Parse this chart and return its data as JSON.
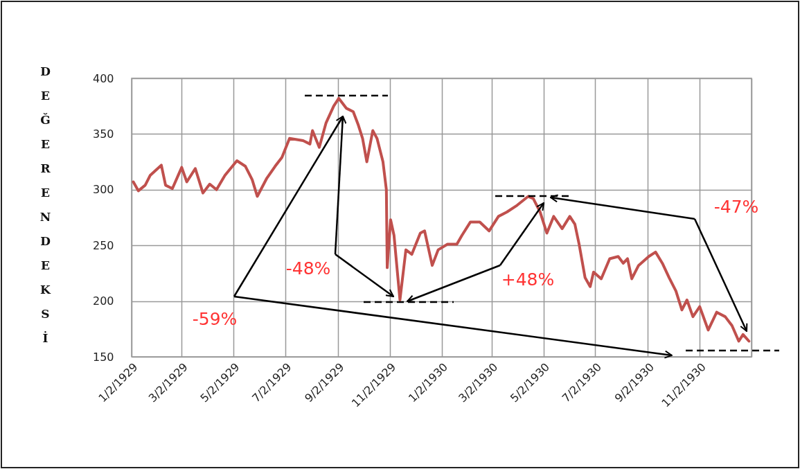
{
  "chart_data": {
    "type": "line",
    "ylabel": "DEĞER ENDEKSİ",
    "x": [
      "1929-01-04",
      "1929-01-10",
      "1929-01-18",
      "1929-01-24",
      "1929-02-06",
      "1929-02-11",
      "1929-02-19",
      "1929-03-02",
      "1929-03-08",
      "1929-03-18",
      "1929-03-27",
      "1929-04-04",
      "1929-04-12",
      "1929-04-22",
      "1929-05-06",
      "1929-05-16",
      "1929-05-24",
      "1929-05-30",
      "1929-06-10",
      "1929-06-20",
      "1929-06-28",
      "1929-07-07",
      "1929-07-23",
      "1929-07-31",
      "1929-08-03",
      "1929-08-11",
      "1929-08-19",
      "1929-08-28",
      "1929-09-03",
      "1929-09-12",
      "1929-09-20",
      "1929-09-26",
      "1929-10-01",
      "1929-10-06",
      "1929-10-13",
      "1929-10-18",
      "1929-10-25",
      "1929-10-29",
      "1929-10-30",
      "1929-11-03",
      "1929-11-07",
      "1929-11-14",
      "1929-11-21",
      "1929-11-28",
      "1929-12-08",
      "1929-12-13",
      "1929-12-22",
      "1929-12-29",
      "1930-01-09",
      "1930-01-20",
      "1930-01-26",
      "1930-02-05",
      "1930-02-16",
      "1930-02-27",
      "1930-03-10",
      "1930-03-20",
      "1930-04-01",
      "1930-04-14",
      "1930-04-20",
      "1930-04-28",
      "1930-05-06",
      "1930-05-14",
      "1930-05-24",
      "1930-06-02",
      "1930-06-08",
      "1930-06-13",
      "1930-06-20",
      "1930-06-26",
      "1930-06-30",
      "1930-07-09",
      "1930-07-19",
      "1930-07-29",
      "1930-08-04",
      "1930-08-09",
      "1930-08-14",
      "1930-08-22",
      "1930-09-03",
      "1930-09-11",
      "1930-09-19",
      "1930-09-27",
      "1930-10-05",
      "1930-10-12",
      "1930-10-18",
      "1930-10-25",
      "1930-11-02",
      "1930-11-12",
      "1930-11-22",
      "1930-12-02",
      "1930-12-10",
      "1930-12-18",
      "1930-12-23",
      "1930-12-30"
    ],
    "series": [
      {
        "color": "#c0504d",
        "values": [
          307,
          299,
          304,
          313,
          322,
          304,
          301,
          320,
          307,
          319,
          297,
          305,
          300,
          313,
          326,
          321,
          309,
          294,
          310,
          321,
          329,
          346,
          344,
          341,
          353,
          338,
          360,
          375,
          382,
          373,
          370,
          358,
          346,
          325,
          353,
          346,
          325,
          300,
          230,
          273,
          259,
          201,
          246,
          242,
          261,
          263,
          232,
          246,
          251,
          251,
          259,
          271,
          271,
          263,
          276,
          280,
          286,
          294,
          292,
          280,
          261,
          276,
          265,
          276,
          269,
          251,
          221,
          213,
          226,
          220,
          238,
          240,
          234,
          238,
          220,
          232,
          240,
          244,
          234,
          221,
          209,
          192,
          201,
          186,
          195,
          174,
          190,
          186,
          178,
          164,
          170,
          164
        ]
      }
    ],
    "xlim": [
      "1929-01-02",
      "1931-01-02"
    ],
    "xticks": [
      {
        "value": "1929-01-02",
        "label": "1/2/1929"
      },
      {
        "value": "1929-03-02",
        "label": "3/2/1929"
      },
      {
        "value": "1929-05-02",
        "label": "5/2/1929"
      },
      {
        "value": "1929-07-02",
        "label": "7/2/1929"
      },
      {
        "value": "1929-09-02",
        "label": "9/2/1929"
      },
      {
        "value": "1929-11-02",
        "label": "11/2/1929"
      },
      {
        "value": "1930-01-02",
        "label": "1/2/1930"
      },
      {
        "value": "1930-03-02",
        "label": "3/2/1930"
      },
      {
        "value": "1930-05-02",
        "label": "5/2/1930"
      },
      {
        "value": "1930-07-02",
        "label": "7/2/1930"
      },
      {
        "value": "1930-09-02",
        "label": "9/2/1930"
      },
      {
        "value": "1930-11-02",
        "label": "11/2/1930"
      },
      {
        "value": "1931-01-02",
        "label": null
      }
    ],
    "ylim": [
      150,
      400
    ],
    "yticks": [
      150,
      200,
      250,
      300,
      350,
      400
    ],
    "grid": true,
    "line_style": "solid",
    "annotations": [
      "-59%",
      "-48%",
      "+48%",
      "-47%"
    ]
  }
}
